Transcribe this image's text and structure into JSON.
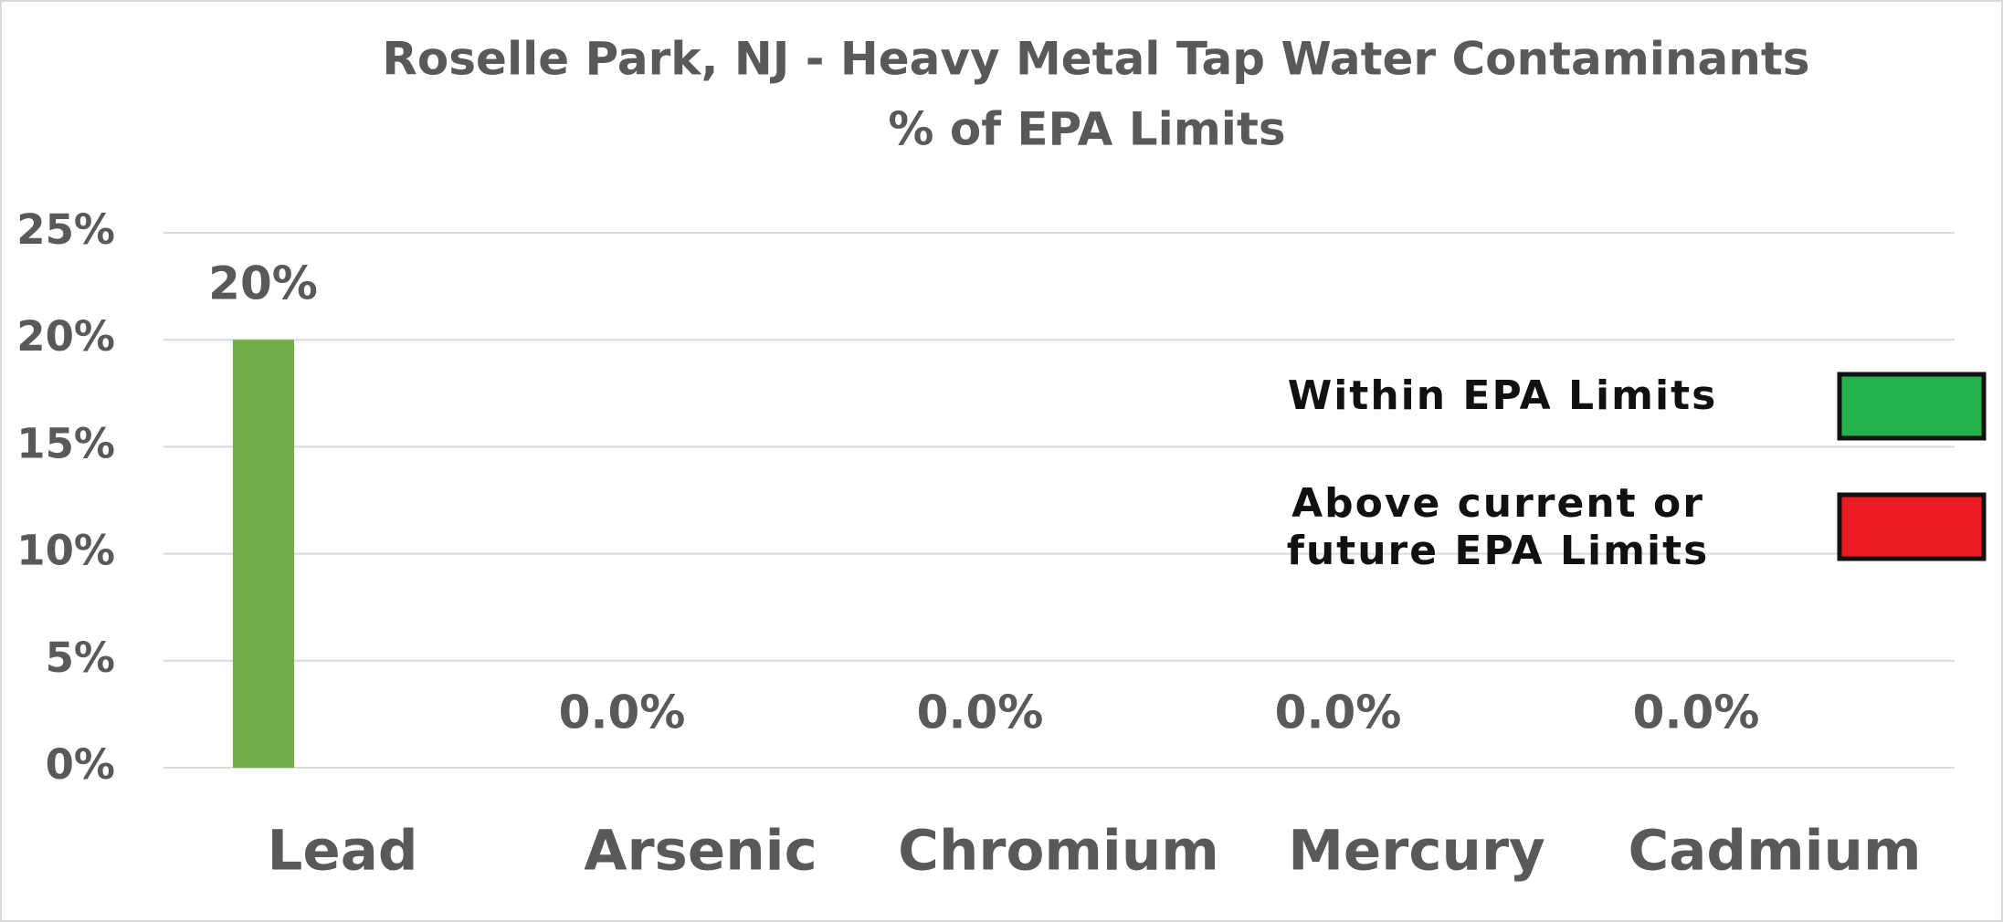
{
  "chart_data": {
    "type": "bar",
    "title": "Roselle Park, NJ - Heavy Metal Tap Water Contaminants",
    "subtitle": "% of EPA Limits",
    "categories": [
      "Lead",
      "Arsenic",
      "Chromium",
      "Mercury",
      "Cadmium"
    ],
    "values": [
      20,
      0,
      0,
      0,
      0
    ],
    "value_labels": [
      "20%",
      "0.0%",
      "0.0%",
      "0.0%",
      "0.0%"
    ],
    "color": "#70ad47",
    "ylim": [
      0,
      25
    ],
    "yticks": [
      {
        "value": 0,
        "label": "0%"
      },
      {
        "value": 5,
        "label": "5%"
      },
      {
        "value": 10,
        "label": "10%"
      },
      {
        "value": 15,
        "label": "15%"
      },
      {
        "value": 20,
        "label": "20%"
      },
      {
        "value": 25,
        "label": "25%"
      }
    ],
    "grid": true,
    "legend": [
      {
        "label": "Within EPA Limits",
        "color": "#22b14c"
      },
      {
        "label": "Above current or future EPA Limits",
        "color": "#ed1c24"
      }
    ]
  }
}
